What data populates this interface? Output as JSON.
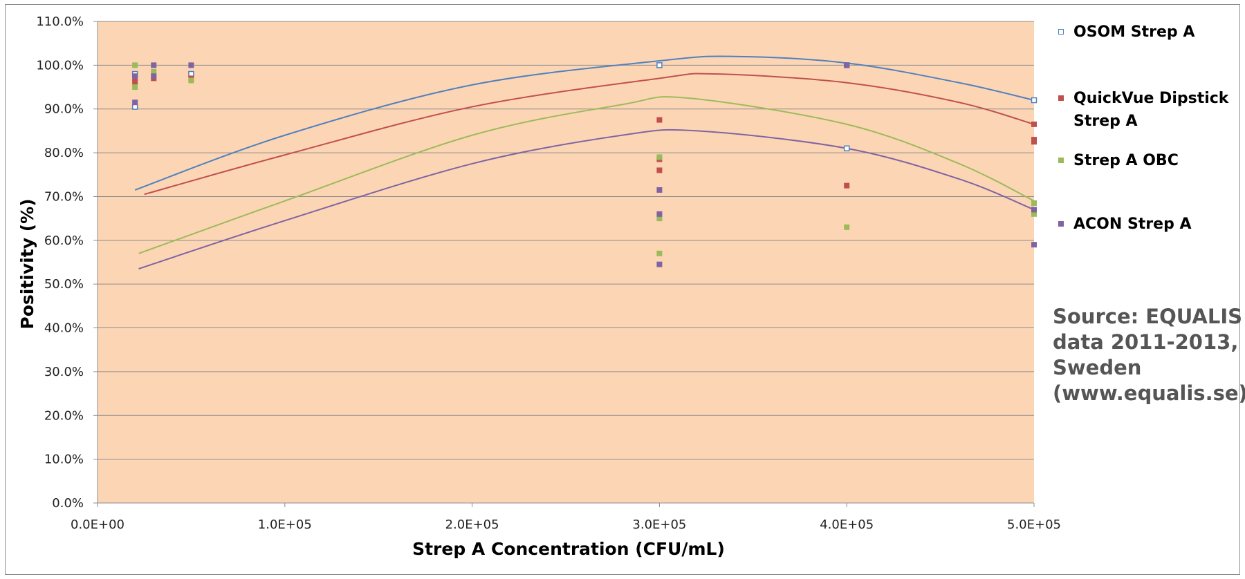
{
  "chart_data": {
    "type": "scatter",
    "xlabel": "Strep A Concentration (CFU/mL)",
    "ylabel": "Positivity (%)",
    "xlim": [
      0,
      500000
    ],
    "ylim": [
      0,
      1.1
    ],
    "x_ticks": [
      "0.0E+00",
      "1.0E+05",
      "2.0E+05",
      "3.0E+05",
      "4.0E+05",
      "5.0E+05"
    ],
    "y_ticks": [
      "0.0%",
      "10.0%",
      "20.0%",
      "30.0%",
      "40.0%",
      "50.0%",
      "60.0%",
      "70.0%",
      "80.0%",
      "90.0%",
      "100.0%",
      "110.0%"
    ],
    "grid": "horizontal",
    "plot_background": "#fcd5b5",
    "legend_position": "right",
    "series": [
      {
        "name": "OSOM Strep A",
        "color": "#4f81bd",
        "marker": "hollow-square",
        "points": [
          [
            20000,
            0.905
          ],
          [
            20000,
            0.98
          ],
          [
            50000,
            0.98
          ],
          [
            300000,
            1.0
          ],
          [
            400000,
            1.0
          ],
          [
            400000,
            0.81
          ],
          [
            500000,
            0.92
          ]
        ],
        "trend": [
          [
            20000,
            0.715
          ],
          [
            100000,
            0.84
          ],
          [
            200000,
            0.955
          ],
          [
            300000,
            1.01
          ],
          [
            340000,
            1.02
          ],
          [
            400000,
            1.005
          ],
          [
            460000,
            0.96
          ],
          [
            500000,
            0.92
          ]
        ]
      },
      {
        "name": "QuickVue Dipstick Strep A",
        "color": "#c0504d",
        "marker": "square",
        "points": [
          [
            20000,
            0.97
          ],
          [
            20000,
            0.96
          ],
          [
            30000,
            0.97
          ],
          [
            50000,
            0.97
          ],
          [
            300000,
            0.875
          ],
          [
            300000,
            0.785
          ],
          [
            300000,
            0.76
          ],
          [
            400000,
            0.725
          ],
          [
            500000,
            0.865
          ],
          [
            500000,
            0.83
          ],
          [
            500000,
            0.825
          ]
        ],
        "trend": [
          [
            25000,
            0.705
          ],
          [
            100000,
            0.795
          ],
          [
            200000,
            0.905
          ],
          [
            300000,
            0.97
          ],
          [
            330000,
            0.98
          ],
          [
            400000,
            0.96
          ],
          [
            460000,
            0.915
          ],
          [
            500000,
            0.865
          ]
        ]
      },
      {
        "name": "Strep A OBC",
        "color": "#9bbb59",
        "marker": "square",
        "points": [
          [
            20000,
            1.0
          ],
          [
            20000,
            0.95
          ],
          [
            30000,
            0.985
          ],
          [
            50000,
            0.965
          ],
          [
            300000,
            0.79
          ],
          [
            300000,
            0.65
          ],
          [
            300000,
            0.57
          ],
          [
            400000,
            0.63
          ],
          [
            500000,
            0.685
          ],
          [
            500000,
            0.66
          ]
        ],
        "trend": [
          [
            22000,
            0.57
          ],
          [
            100000,
            0.69
          ],
          [
            200000,
            0.84
          ],
          [
            280000,
            0.91
          ],
          [
            315000,
            0.925
          ],
          [
            400000,
            0.865
          ],
          [
            460000,
            0.775
          ],
          [
            500000,
            0.69
          ]
        ]
      },
      {
        "name": "ACON Strep A",
        "color": "#8064a2",
        "marker": "square",
        "points": [
          [
            20000,
            0.915
          ],
          [
            20000,
            0.975
          ],
          [
            30000,
            1.0
          ],
          [
            30000,
            0.975
          ],
          [
            50000,
            1.0
          ],
          [
            300000,
            0.715
          ],
          [
            300000,
            0.66
          ],
          [
            300000,
            0.545
          ],
          [
            400000,
            1.0
          ],
          [
            500000,
            0.67
          ],
          [
            500000,
            0.59
          ]
        ],
        "trend": [
          [
            22000,
            0.535
          ],
          [
            100000,
            0.645
          ],
          [
            200000,
            0.775
          ],
          [
            280000,
            0.84
          ],
          [
            320000,
            0.85
          ],
          [
            400000,
            0.81
          ],
          [
            460000,
            0.74
          ],
          [
            500000,
            0.67
          ]
        ]
      }
    ]
  },
  "annotation": {
    "lines": [
      "Source: EQUALIS",
      "data 2011-2013,",
      "Sweden",
      "(www.equalis.se)"
    ]
  }
}
